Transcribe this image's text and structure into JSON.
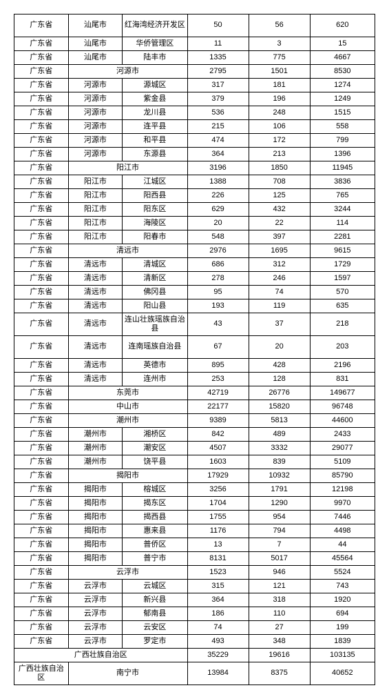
{
  "rows": [
    {
      "cells": [
        {
          "t": "广东省",
          "sp": 1
        },
        {
          "t": "汕尾市",
          "sp": 1
        },
        {
          "t": "红海湾经济开发区",
          "sp": 1,
          "ml": true,
          "h": "h2"
        },
        {
          "t": "50",
          "sp": 1
        },
        {
          "t": "56",
          "sp": 1
        },
        {
          "t": "620",
          "sp": 1
        }
      ]
    },
    {
      "cells": [
        {
          "t": "广东省",
          "sp": 1
        },
        {
          "t": "汕尾市",
          "sp": 1
        },
        {
          "t": "华侨管理区",
          "sp": 1
        },
        {
          "t": "11",
          "sp": 1
        },
        {
          "t": "3",
          "sp": 1
        },
        {
          "t": "15",
          "sp": 1
        }
      ]
    },
    {
      "cells": [
        {
          "t": "广东省",
          "sp": 1
        },
        {
          "t": "汕尾市",
          "sp": 1
        },
        {
          "t": "陆丰市",
          "sp": 1
        },
        {
          "t": "1335",
          "sp": 1
        },
        {
          "t": "775",
          "sp": 1
        },
        {
          "t": "4667",
          "sp": 1
        }
      ]
    },
    {
      "cells": [
        {
          "t": "广东省",
          "sp": 1
        },
        {
          "t": "河源市",
          "sp": 2
        },
        {
          "t": "2795",
          "sp": 1
        },
        {
          "t": "1501",
          "sp": 1
        },
        {
          "t": "8530",
          "sp": 1
        }
      ]
    },
    {
      "cells": [
        {
          "t": "广东省",
          "sp": 1
        },
        {
          "t": "河源市",
          "sp": 1
        },
        {
          "t": "源城区",
          "sp": 1
        },
        {
          "t": "317",
          "sp": 1
        },
        {
          "t": "181",
          "sp": 1
        },
        {
          "t": "1274",
          "sp": 1
        }
      ]
    },
    {
      "cells": [
        {
          "t": "广东省",
          "sp": 1
        },
        {
          "t": "河源市",
          "sp": 1
        },
        {
          "t": "紫金县",
          "sp": 1
        },
        {
          "t": "379",
          "sp": 1
        },
        {
          "t": "196",
          "sp": 1
        },
        {
          "t": "1249",
          "sp": 1
        }
      ]
    },
    {
      "cells": [
        {
          "t": "广东省",
          "sp": 1
        },
        {
          "t": "河源市",
          "sp": 1
        },
        {
          "t": "龙川县",
          "sp": 1
        },
        {
          "t": "536",
          "sp": 1
        },
        {
          "t": "248",
          "sp": 1
        },
        {
          "t": "1515",
          "sp": 1
        }
      ]
    },
    {
      "cells": [
        {
          "t": "广东省",
          "sp": 1
        },
        {
          "t": "河源市",
          "sp": 1
        },
        {
          "t": "连平县",
          "sp": 1
        },
        {
          "t": "215",
          "sp": 1
        },
        {
          "t": "106",
          "sp": 1
        },
        {
          "t": "558",
          "sp": 1
        }
      ]
    },
    {
      "cells": [
        {
          "t": "广东省",
          "sp": 1
        },
        {
          "t": "河源市",
          "sp": 1
        },
        {
          "t": "和平县",
          "sp": 1
        },
        {
          "t": "474",
          "sp": 1
        },
        {
          "t": "172",
          "sp": 1
        },
        {
          "t": "799",
          "sp": 1
        }
      ]
    },
    {
      "cells": [
        {
          "t": "广东省",
          "sp": 1
        },
        {
          "t": "河源市",
          "sp": 1
        },
        {
          "t": "东源县",
          "sp": 1
        },
        {
          "t": "364",
          "sp": 1
        },
        {
          "t": "213",
          "sp": 1
        },
        {
          "t": "1396",
          "sp": 1
        }
      ]
    },
    {
      "cells": [
        {
          "t": "广东省",
          "sp": 1
        },
        {
          "t": "阳江市",
          "sp": 2
        },
        {
          "t": "3196",
          "sp": 1
        },
        {
          "t": "1850",
          "sp": 1
        },
        {
          "t": "11945",
          "sp": 1
        }
      ]
    },
    {
      "cells": [
        {
          "t": "广东省",
          "sp": 1
        },
        {
          "t": "阳江市",
          "sp": 1
        },
        {
          "t": "江城区",
          "sp": 1
        },
        {
          "t": "1388",
          "sp": 1
        },
        {
          "t": "708",
          "sp": 1
        },
        {
          "t": "3836",
          "sp": 1
        }
      ]
    },
    {
      "cells": [
        {
          "t": "广东省",
          "sp": 1
        },
        {
          "t": "阳江市",
          "sp": 1
        },
        {
          "t": "阳西县",
          "sp": 1
        },
        {
          "t": "226",
          "sp": 1
        },
        {
          "t": "125",
          "sp": 1
        },
        {
          "t": "765",
          "sp": 1
        }
      ]
    },
    {
      "cells": [
        {
          "t": "广东省",
          "sp": 1
        },
        {
          "t": "阳江市",
          "sp": 1
        },
        {
          "t": "阳东区",
          "sp": 1
        },
        {
          "t": "629",
          "sp": 1
        },
        {
          "t": "432",
          "sp": 1
        },
        {
          "t": "3244",
          "sp": 1
        }
      ]
    },
    {
      "cells": [
        {
          "t": "广东省",
          "sp": 1
        },
        {
          "t": "阳江市",
          "sp": 1
        },
        {
          "t": "海陵区",
          "sp": 1
        },
        {
          "t": "20",
          "sp": 1
        },
        {
          "t": "22",
          "sp": 1
        },
        {
          "t": "114",
          "sp": 1
        }
      ]
    },
    {
      "cells": [
        {
          "t": "广东省",
          "sp": 1
        },
        {
          "t": "阳江市",
          "sp": 1
        },
        {
          "t": "阳春市",
          "sp": 1
        },
        {
          "t": "548",
          "sp": 1
        },
        {
          "t": "397",
          "sp": 1
        },
        {
          "t": "2281",
          "sp": 1
        }
      ]
    },
    {
      "cells": [
        {
          "t": "广东省",
          "sp": 1
        },
        {
          "t": "清远市",
          "sp": 2
        },
        {
          "t": "2976",
          "sp": 1
        },
        {
          "t": "1695",
          "sp": 1
        },
        {
          "t": "9615",
          "sp": 1
        }
      ]
    },
    {
      "cells": [
        {
          "t": "广东省",
          "sp": 1
        },
        {
          "t": "清远市",
          "sp": 1
        },
        {
          "t": "清城区",
          "sp": 1
        },
        {
          "t": "686",
          "sp": 1
        },
        {
          "t": "312",
          "sp": 1
        },
        {
          "t": "1729",
          "sp": 1
        }
      ]
    },
    {
      "cells": [
        {
          "t": "广东省",
          "sp": 1
        },
        {
          "t": "清远市",
          "sp": 1
        },
        {
          "t": "清新区",
          "sp": 1
        },
        {
          "t": "278",
          "sp": 1
        },
        {
          "t": "246",
          "sp": 1
        },
        {
          "t": "1597",
          "sp": 1
        }
      ]
    },
    {
      "cells": [
        {
          "t": "广东省",
          "sp": 1
        },
        {
          "t": "清远市",
          "sp": 1
        },
        {
          "t": "佛冈县",
          "sp": 1
        },
        {
          "t": "95",
          "sp": 1
        },
        {
          "t": "74",
          "sp": 1
        },
        {
          "t": "570",
          "sp": 1
        }
      ]
    },
    {
      "cells": [
        {
          "t": "广东省",
          "sp": 1
        },
        {
          "t": "清远市",
          "sp": 1
        },
        {
          "t": "阳山县",
          "sp": 1
        },
        {
          "t": "193",
          "sp": 1
        },
        {
          "t": "119",
          "sp": 1
        },
        {
          "t": "635",
          "sp": 1
        }
      ]
    },
    {
      "cells": [
        {
          "t": "广东省",
          "sp": 1
        },
        {
          "t": "清远市",
          "sp": 1
        },
        {
          "t": "连山壮族瑶族自治县",
          "sp": 1,
          "ml": true,
          "h": "h2"
        },
        {
          "t": "43",
          "sp": 1
        },
        {
          "t": "37",
          "sp": 1
        },
        {
          "t": "218",
          "sp": 1
        }
      ]
    },
    {
      "cells": [
        {
          "t": "广东省",
          "sp": 1
        },
        {
          "t": "清远市",
          "sp": 1
        },
        {
          "t": "连南瑶族自治县",
          "sp": 1,
          "ml": true,
          "h": "h2"
        },
        {
          "t": "67",
          "sp": 1
        },
        {
          "t": "20",
          "sp": 1
        },
        {
          "t": "203",
          "sp": 1
        }
      ]
    },
    {
      "cells": [
        {
          "t": "广东省",
          "sp": 1
        },
        {
          "t": "清远市",
          "sp": 1
        },
        {
          "t": "英德市",
          "sp": 1
        },
        {
          "t": "895",
          "sp": 1
        },
        {
          "t": "428",
          "sp": 1
        },
        {
          "t": "2196",
          "sp": 1
        }
      ]
    },
    {
      "cells": [
        {
          "t": "广东省",
          "sp": 1
        },
        {
          "t": "清远市",
          "sp": 1
        },
        {
          "t": "连州市",
          "sp": 1
        },
        {
          "t": "253",
          "sp": 1
        },
        {
          "t": "128",
          "sp": 1
        },
        {
          "t": "831",
          "sp": 1
        }
      ]
    },
    {
      "cells": [
        {
          "t": "广东省",
          "sp": 1
        },
        {
          "t": "东莞市",
          "sp": 2
        },
        {
          "t": "42719",
          "sp": 1
        },
        {
          "t": "26776",
          "sp": 1
        },
        {
          "t": "149677",
          "sp": 1
        }
      ]
    },
    {
      "cells": [
        {
          "t": "广东省",
          "sp": 1
        },
        {
          "t": "中山市",
          "sp": 2
        },
        {
          "t": "22177",
          "sp": 1
        },
        {
          "t": "15820",
          "sp": 1
        },
        {
          "t": "96748",
          "sp": 1
        }
      ]
    },
    {
      "cells": [
        {
          "t": "广东省",
          "sp": 1
        },
        {
          "t": "潮州市",
          "sp": 2
        },
        {
          "t": "9389",
          "sp": 1
        },
        {
          "t": "5813",
          "sp": 1
        },
        {
          "t": "44600",
          "sp": 1
        }
      ]
    },
    {
      "cells": [
        {
          "t": "广东省",
          "sp": 1
        },
        {
          "t": "潮州市",
          "sp": 1
        },
        {
          "t": "湘桥区",
          "sp": 1
        },
        {
          "t": "842",
          "sp": 1
        },
        {
          "t": "489",
          "sp": 1
        },
        {
          "t": "2433",
          "sp": 1
        }
      ]
    },
    {
      "cells": [
        {
          "t": "广东省",
          "sp": 1
        },
        {
          "t": "潮州市",
          "sp": 1
        },
        {
          "t": "潮安区",
          "sp": 1
        },
        {
          "t": "4507",
          "sp": 1
        },
        {
          "t": "3332",
          "sp": 1
        },
        {
          "t": "29077",
          "sp": 1
        }
      ]
    },
    {
      "cells": [
        {
          "t": "广东省",
          "sp": 1
        },
        {
          "t": "潮州市",
          "sp": 1
        },
        {
          "t": "饶平县",
          "sp": 1
        },
        {
          "t": "1603",
          "sp": 1
        },
        {
          "t": "839",
          "sp": 1
        },
        {
          "t": "5109",
          "sp": 1
        }
      ]
    },
    {
      "cells": [
        {
          "t": "广东省",
          "sp": 1
        },
        {
          "t": "揭阳市",
          "sp": 2
        },
        {
          "t": "17929",
          "sp": 1
        },
        {
          "t": "10932",
          "sp": 1
        },
        {
          "t": "85790",
          "sp": 1
        }
      ]
    },
    {
      "cells": [
        {
          "t": "广东省",
          "sp": 1
        },
        {
          "t": "揭阳市",
          "sp": 1
        },
        {
          "t": "榕城区",
          "sp": 1
        },
        {
          "t": "3256",
          "sp": 1
        },
        {
          "t": "1791",
          "sp": 1
        },
        {
          "t": "12198",
          "sp": 1
        }
      ]
    },
    {
      "cells": [
        {
          "t": "广东省",
          "sp": 1
        },
        {
          "t": "揭阳市",
          "sp": 1
        },
        {
          "t": "揭东区",
          "sp": 1
        },
        {
          "t": "1704",
          "sp": 1
        },
        {
          "t": "1290",
          "sp": 1
        },
        {
          "t": "9970",
          "sp": 1
        }
      ]
    },
    {
      "cells": [
        {
          "t": "广东省",
          "sp": 1
        },
        {
          "t": "揭阳市",
          "sp": 1
        },
        {
          "t": "揭西县",
          "sp": 1
        },
        {
          "t": "1755",
          "sp": 1
        },
        {
          "t": "954",
          "sp": 1
        },
        {
          "t": "7446",
          "sp": 1
        }
      ]
    },
    {
      "cells": [
        {
          "t": "广东省",
          "sp": 1
        },
        {
          "t": "揭阳市",
          "sp": 1
        },
        {
          "t": "惠来县",
          "sp": 1
        },
        {
          "t": "1176",
          "sp": 1
        },
        {
          "t": "794",
          "sp": 1
        },
        {
          "t": "4498",
          "sp": 1
        }
      ]
    },
    {
      "cells": [
        {
          "t": "广东省",
          "sp": 1
        },
        {
          "t": "揭阳市",
          "sp": 1
        },
        {
          "t": "普侨区",
          "sp": 1
        },
        {
          "t": "13",
          "sp": 1
        },
        {
          "t": "7",
          "sp": 1
        },
        {
          "t": "44",
          "sp": 1
        }
      ]
    },
    {
      "cells": [
        {
          "t": "广东省",
          "sp": 1
        },
        {
          "t": "揭阳市",
          "sp": 1
        },
        {
          "t": "普宁市",
          "sp": 1
        },
        {
          "t": "8131",
          "sp": 1
        },
        {
          "t": "5017",
          "sp": 1
        },
        {
          "t": "45564",
          "sp": 1
        }
      ]
    },
    {
      "cells": [
        {
          "t": "广东省",
          "sp": 1
        },
        {
          "t": "云浮市",
          "sp": 2
        },
        {
          "t": "1523",
          "sp": 1
        },
        {
          "t": "946",
          "sp": 1
        },
        {
          "t": "5524",
          "sp": 1
        }
      ]
    },
    {
      "cells": [
        {
          "t": "广东省",
          "sp": 1
        },
        {
          "t": "云浮市",
          "sp": 1
        },
        {
          "t": "云城区",
          "sp": 1
        },
        {
          "t": "315",
          "sp": 1
        },
        {
          "t": "121",
          "sp": 1
        },
        {
          "t": "743",
          "sp": 1
        }
      ]
    },
    {
      "cells": [
        {
          "t": "广东省",
          "sp": 1
        },
        {
          "t": "云浮市",
          "sp": 1
        },
        {
          "t": "新兴县",
          "sp": 1
        },
        {
          "t": "364",
          "sp": 1
        },
        {
          "t": "318",
          "sp": 1
        },
        {
          "t": "1920",
          "sp": 1
        }
      ]
    },
    {
      "cells": [
        {
          "t": "广东省",
          "sp": 1
        },
        {
          "t": "云浮市",
          "sp": 1
        },
        {
          "t": "郁南县",
          "sp": 1
        },
        {
          "t": "186",
          "sp": 1
        },
        {
          "t": "110",
          "sp": 1
        },
        {
          "t": "694",
          "sp": 1
        }
      ]
    },
    {
      "cells": [
        {
          "t": "广东省",
          "sp": 1
        },
        {
          "t": "云浮市",
          "sp": 1
        },
        {
          "t": "云安区",
          "sp": 1
        },
        {
          "t": "74",
          "sp": 1
        },
        {
          "t": "27",
          "sp": 1
        },
        {
          "t": "199",
          "sp": 1
        }
      ]
    },
    {
      "cells": [
        {
          "t": "广东省",
          "sp": 1
        },
        {
          "t": "云浮市",
          "sp": 1
        },
        {
          "t": "罗定市",
          "sp": 1
        },
        {
          "t": "493",
          "sp": 1
        },
        {
          "t": "348",
          "sp": 1
        },
        {
          "t": "1839",
          "sp": 1
        }
      ]
    },
    {
      "cells": [
        {
          "t": "广西壮族自治区",
          "sp": 3
        },
        {
          "t": "35229",
          "sp": 1
        },
        {
          "t": "19616",
          "sp": 1
        },
        {
          "t": "103135",
          "sp": 1
        }
      ]
    },
    {
      "cells": [
        {
          "t": "广西壮族自治区",
          "sp": 1,
          "ml": true,
          "h": "h2"
        },
        {
          "t": "南宁市",
          "sp": 2
        },
        {
          "t": "13984",
          "sp": 1
        },
        {
          "t": "8375",
          "sp": 1
        },
        {
          "t": "40652",
          "sp": 1
        }
      ]
    }
  ]
}
